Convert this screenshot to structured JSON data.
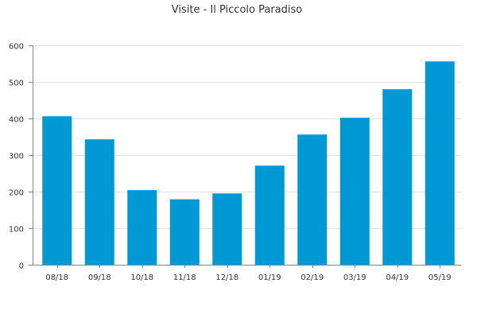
{
  "colors": {
    "bar": "#0099d6",
    "grid": "#e3e3e3",
    "axis": "#888888",
    "text": "#333333"
  },
  "chart_data": {
    "type": "bar",
    "title": "Visite - Il Piccolo Paradiso",
    "xlabel": "",
    "ylabel": "",
    "categories": [
      "08/18",
      "09/18",
      "10/18",
      "11/18",
      "12/18",
      "01/19",
      "02/19",
      "03/19",
      "04/19",
      "05/19"
    ],
    "series": [
      {
        "values": [
          406,
          343,
          204,
          179,
          195,
          271,
          356,
          402,
          480,
          556
        ]
      }
    ],
    "ylim": [
      0,
      600
    ],
    "yticks": [
      0,
      100,
      200,
      300,
      400,
      500,
      600
    ],
    "grid": true,
    "legend": "none"
  }
}
